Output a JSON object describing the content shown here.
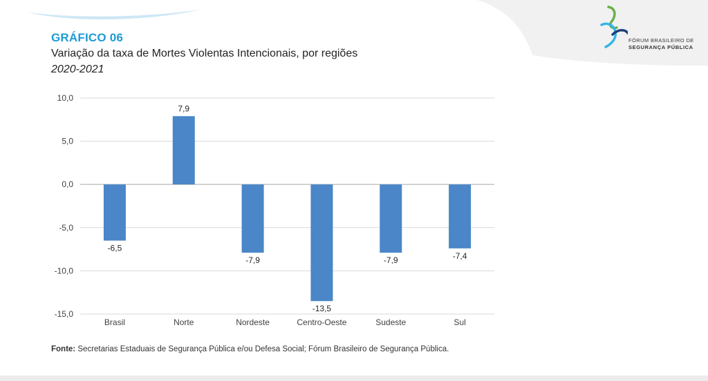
{
  "header": {
    "chart_label": "GRÁFICO 06",
    "title": "Variação da taxa de Mortes Violentas Intencionais, por regiões",
    "subtitle": "2020-2021"
  },
  "logo": {
    "line1": "FÓRUM BRASILEIRO DE",
    "line2": "SEGURANÇA PÚBLICA",
    "icon": "fbsp-logo-icon"
  },
  "chart_data": {
    "type": "bar",
    "categories": [
      "Brasil",
      "Norte",
      "Nordeste",
      "Centro-Oeste",
      "Sudeste",
      "Sul"
    ],
    "values": [
      -6.5,
      7.9,
      -7.9,
      -13.5,
      -7.9,
      -7.4
    ],
    "data_labels": [
      "-6,5",
      "7,9",
      "-7,9",
      "-13,5",
      "-7,9",
      "-7,4"
    ],
    "ylim": [
      -15,
      10
    ],
    "yticks": [
      10,
      5,
      0,
      -5,
      -10,
      -15
    ],
    "ytick_labels": [
      "10,0",
      "5,0",
      "0,0",
      "-5,0",
      "-10,0",
      "-15,0"
    ],
    "xlabel": "",
    "ylabel": "",
    "grid": true,
    "bar_color": "#4a86c8"
  },
  "footer": {
    "source_label": "Fonte:",
    "source_text": " Secretarias Estaduais de Segurança Pública e/ou Defesa Social; Fórum Brasileiro de Segurança Pública."
  },
  "colors": {
    "accent": "#1e9bd6",
    "bar": "#4a86c8",
    "logo_green": "#6ab04c",
    "logo_navy": "#1f3f7a",
    "logo_lightblue": "#33b6e6"
  }
}
